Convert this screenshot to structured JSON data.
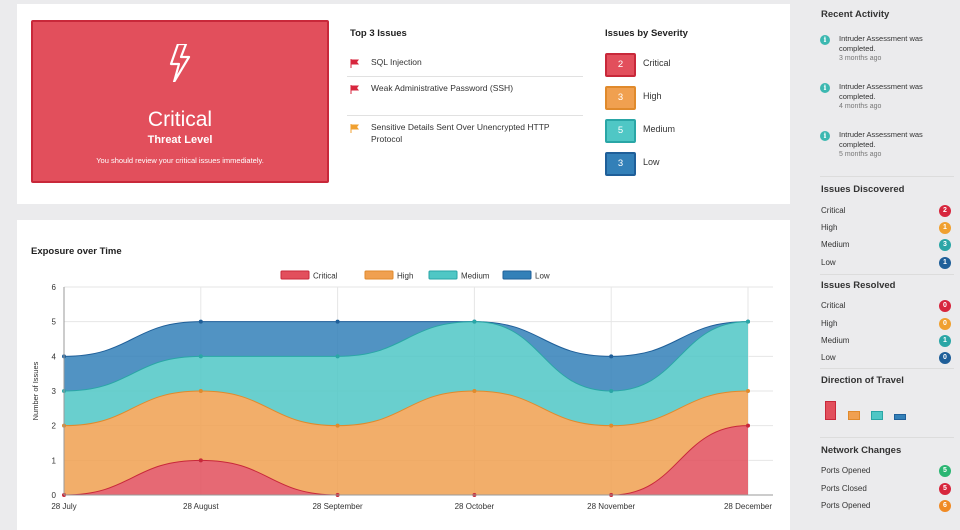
{
  "colors": {
    "critical": "#e24f5c",
    "critical_border": "#c8283a",
    "high": "#f0a050",
    "high_border": "#e08a2c",
    "medium": "#4fc7c5",
    "medium_border": "#2aa6a6",
    "low": "#3380b8",
    "low_border": "#1f5f99"
  },
  "threat": {
    "icon": "lightning-bolt-icon",
    "level": "Critical",
    "label": "Threat Level",
    "message": "You should review your critical issues immediately."
  },
  "top_issues": {
    "title": "Top 3 Issues",
    "items": [
      {
        "text": "SQL Injection",
        "severity": "critical"
      },
      {
        "text": "Weak Administrative Password (SSH)",
        "severity": "critical"
      },
      {
        "text": "Sensitive Details Sent Over Unencrypted HTTP Protocol",
        "severity": "high"
      }
    ]
  },
  "severity": {
    "title": "Issues by Severity",
    "items": [
      {
        "count": "2",
        "label": "Critical"
      },
      {
        "count": "3",
        "label": "High"
      },
      {
        "count": "5",
        "label": "Medium"
      },
      {
        "count": "3",
        "label": "Low"
      }
    ]
  },
  "chart_data": {
    "type": "area",
    "title": "Exposure over Time",
    "xlabel": "",
    "ylabel": "Number of Issues",
    "categories": [
      "28 July",
      "28 August",
      "28 September",
      "28 October",
      "28 November",
      "28 December"
    ],
    "ylim": [
      0,
      6
    ],
    "yticks": [
      "0",
      "1",
      "2",
      "3",
      "4",
      "5",
      "6"
    ],
    "stacked": true,
    "grid": true,
    "legend_position": "top",
    "series": [
      {
        "name": "Critical",
        "values": [
          0,
          1,
          0,
          0,
          0,
          2
        ]
      },
      {
        "name": "High",
        "values": [
          2,
          2,
          2,
          3,
          2,
          1
        ]
      },
      {
        "name": "Medium",
        "values": [
          1,
          1,
          2,
          2,
          1,
          2
        ]
      },
      {
        "name": "Low",
        "values": [
          1,
          1,
          1,
          0,
          1,
          0
        ]
      }
    ]
  },
  "sidebar": {
    "recent_activity": {
      "title": "Recent Activity",
      "items": [
        {
          "text": "Intruder Assessment was completed.",
          "time": "3 months ago"
        },
        {
          "text": "Intruder Assessment was completed.",
          "time": "4 months ago"
        },
        {
          "text": "Intruder Assessment was completed.",
          "time": "5 months ago"
        }
      ]
    },
    "issues_discovered": {
      "title": "Issues Discovered",
      "items": [
        {
          "label": "Critical",
          "count": "2"
        },
        {
          "label": "High",
          "count": "1"
        },
        {
          "label": "Medium",
          "count": "3"
        },
        {
          "label": "Low",
          "count": "1"
        }
      ]
    },
    "issues_resolved": {
      "title": "Issues Resolved",
      "items": [
        {
          "label": "Critical",
          "count": "0"
        },
        {
          "label": "High",
          "count": "0"
        },
        {
          "label": "Medium",
          "count": "1"
        },
        {
          "label": "Low",
          "count": "0"
        }
      ]
    },
    "direction_of_travel": {
      "title": "Direction of Travel",
      "values": [
        2,
        1,
        1,
        0.7
      ]
    },
    "network_changes": {
      "title": "Network Changes",
      "items": [
        {
          "label": "Ports Opened",
          "count": "5",
          "color": "#2bb673"
        },
        {
          "label": "Ports Closed",
          "count": "5",
          "color": "#d7263d"
        },
        {
          "label": "Ports Opened",
          "count": "6",
          "color": "#f08a24"
        }
      ]
    }
  }
}
